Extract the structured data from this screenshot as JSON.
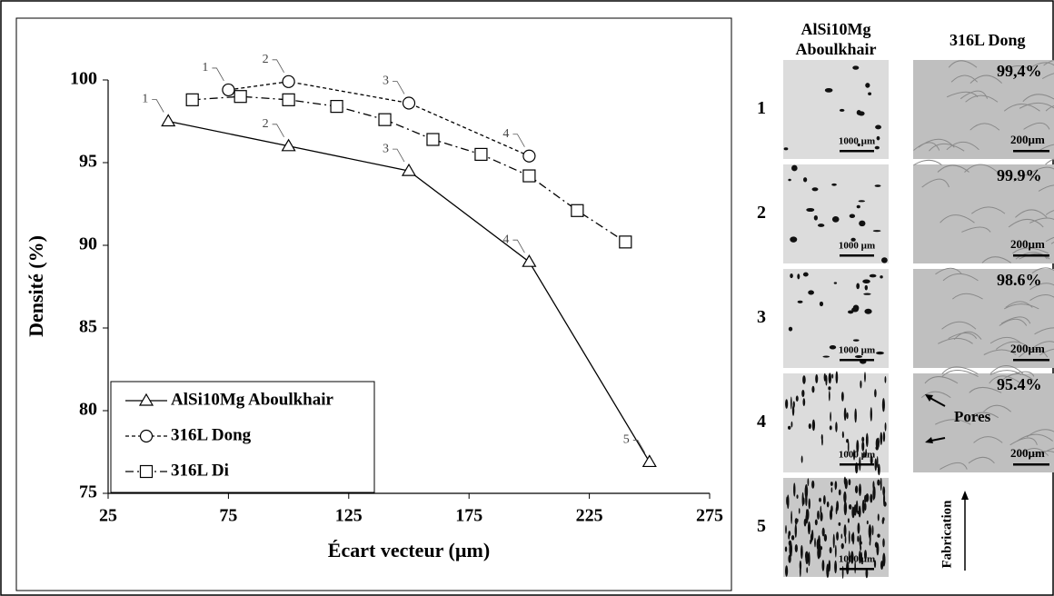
{
  "chart_data": {
    "type": "line",
    "xlabel": "Écart vecteur (µm)",
    "ylabel": "Densité (%)",
    "xlim": [
      25,
      275
    ],
    "xticks": [
      25,
      75,
      125,
      175,
      225,
      275
    ],
    "ylim": [
      75,
      100
    ],
    "yticks": [
      75,
      80,
      85,
      90,
      95,
      100
    ],
    "legend": "lower left",
    "series": [
      {
        "name": "AlSi10Mg Aboulkhair",
        "color": "#000000",
        "line_style": "solid",
        "marker": "triangle",
        "x": [
          50,
          100,
          150,
          200,
          250
        ],
        "values": [
          97.5,
          96.0,
          94.5,
          89.0,
          76.9
        ],
        "point_labels": [
          1,
          2,
          3,
          4,
          5
        ]
      },
      {
        "name": "316L Dong",
        "color": "#000000",
        "line_style": "dashed",
        "marker": "circle",
        "x": [
          75,
          100,
          150,
          200
        ],
        "values": [
          99.4,
          99.9,
          98.6,
          95.4
        ],
        "point_labels": [
          1,
          2,
          3,
          4
        ]
      },
      {
        "name": "316L Di",
        "color": "#000000",
        "line_style": "dashdot",
        "marker": "square",
        "x": [
          60,
          80,
          100,
          120,
          140,
          160,
          180,
          200,
          220,
          240
        ],
        "values": [
          98.8,
          99.0,
          98.8,
          98.4,
          97.6,
          96.4,
          95.5,
          94.2,
          92.1,
          90.2
        ]
      }
    ]
  },
  "micrographs": {
    "columns": [
      {
        "lines": [
          "AlSi10Mg",
          "Aboulkhair"
        ]
      },
      {
        "lines": [
          "316L Dong"
        ]
      }
    ],
    "rows": [
      1,
      2,
      3,
      4,
      5
    ],
    "scale_bars": [
      "1000 µm",
      "200µm"
    ],
    "densities": [
      "99,4%",
      "99.9%",
      "98.6%",
      "95.4%"
    ],
    "pores": "Pores",
    "build_direction": "Fabrication"
  }
}
